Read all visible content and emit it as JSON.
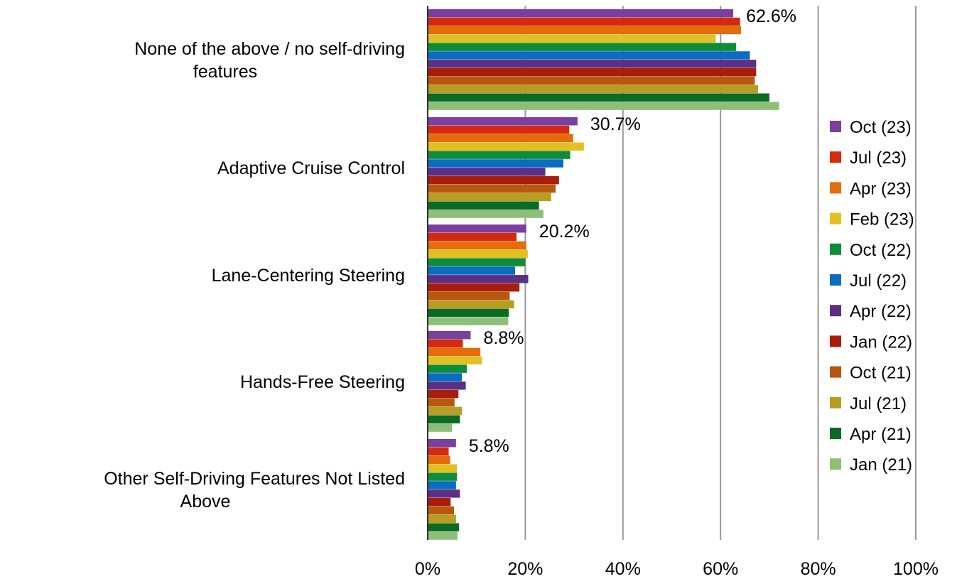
{
  "chart_data": {
    "type": "bar",
    "orientation": "horizontal",
    "categories": [
      "None of the above / no self-driving features",
      "Adaptive Cruise Control",
      "Lane-Centering Steering",
      "Hands-Free Steering",
      "Other Self-Driving Features Not Listed Above"
    ],
    "category_lines": [
      [
        "None of the above / no self-driving",
        "features"
      ],
      [
        "Adaptive Cruise Control"
      ],
      [
        "Lane-Centering Steering"
      ],
      [
        "Hands-Free Steering"
      ],
      [
        "Other Self-Driving Features Not Listed",
        "Above"
      ]
    ],
    "series": [
      {
        "name": "Oct (23)",
        "color": "#7B3FA0",
        "values": [
          62.6,
          30.7,
          20.2,
          8.8,
          5.8
        ]
      },
      {
        "name": "Jul (23)",
        "color": "#D42A0F",
        "values": [
          64.0,
          29.0,
          18.2,
          7.2,
          4.3
        ]
      },
      {
        "name": "Apr (23)",
        "color": "#E46C0A",
        "values": [
          64.2,
          29.8,
          20.2,
          10.8,
          4.6
        ]
      },
      {
        "name": "Feb (23)",
        "color": "#E3C021",
        "values": [
          59.0,
          32.0,
          20.5,
          11.1,
          6.0
        ]
      },
      {
        "name": "Oct (22)",
        "color": "#0E8C3A",
        "values": [
          63.2,
          29.2,
          20.0,
          8.0,
          6.0
        ]
      },
      {
        "name": "Jul (22)",
        "color": "#0A6CC2",
        "values": [
          66.0,
          27.8,
          17.9,
          7.0,
          5.8
        ]
      },
      {
        "name": "Apr (22)",
        "color": "#5B2F84",
        "values": [
          67.3,
          24.1,
          20.6,
          7.8,
          6.6
        ]
      },
      {
        "name": "Jan (22)",
        "color": "#A81E0A",
        "values": [
          67.3,
          26.9,
          18.8,
          6.3,
          4.7
        ]
      },
      {
        "name": "Oct (21)",
        "color": "#B8570F",
        "values": [
          67.0,
          26.2,
          16.8,
          5.5,
          5.4
        ]
      },
      {
        "name": "Jul (21)",
        "color": "#B79D20",
        "values": [
          67.7,
          25.3,
          17.7,
          7.0,
          5.8
        ]
      },
      {
        "name": "Apr (21)",
        "color": "#0B6A24",
        "values": [
          70.0,
          22.8,
          16.6,
          6.6,
          6.4
        ]
      },
      {
        "name": "Jan (21)",
        "color": "#8DBF78",
        "values": [
          72.0,
          23.7,
          16.5,
          5.0,
          6.1
        ]
      }
    ],
    "data_labels": [
      "62.6%",
      "30.7%",
      "20.2%",
      "8.8%",
      "5.8%"
    ],
    "x_ticks": [
      "0%",
      "20%",
      "40%",
      "60%",
      "80%",
      "100%"
    ],
    "xlim": [
      0,
      100
    ],
    "grid": true,
    "legend_position": "right",
    "title": "",
    "xlabel": "",
    "ylabel": ""
  }
}
